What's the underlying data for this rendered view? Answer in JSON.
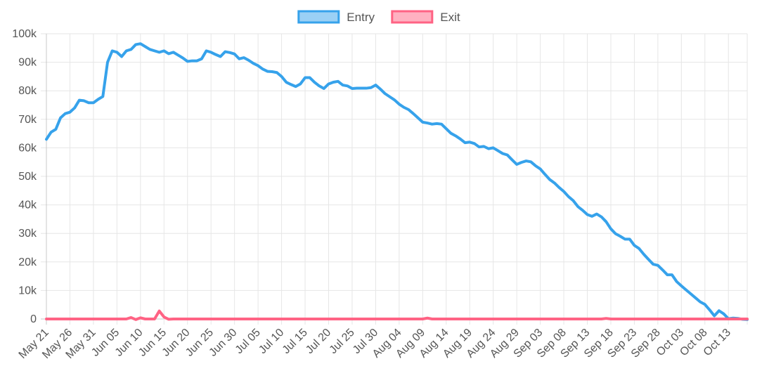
{
  "chart_data": {
    "type": "line",
    "legend": {
      "placement": "top-center"
    },
    "grid": true,
    "ylim": [
      0,
      100000
    ],
    "y_ticks": [
      0,
      10000,
      20000,
      30000,
      40000,
      50000,
      60000,
      70000,
      80000,
      90000,
      100000
    ],
    "y_tick_labels": [
      "0",
      "10k",
      "20k",
      "30k",
      "40k",
      "50k",
      "60k",
      "70k",
      "80k",
      "90k",
      "100k"
    ],
    "x_start": "May 21",
    "x_ticks": [
      "May 21",
      "May 26",
      "May 31",
      "Jun 05",
      "Jun 10",
      "Jun 15",
      "Jun 20",
      "Jun 25",
      "Jun 30",
      "Jul 05",
      "Jul 10",
      "Jul 15",
      "Jul 20",
      "Jul 25",
      "Jul 30",
      "Aug 04",
      "Aug 09",
      "Aug 14",
      "Aug 19",
      "Aug 24",
      "Aug 29",
      "Sep 03",
      "Sep 08",
      "Sep 13",
      "Sep 18",
      "Sep 23",
      "Sep 28",
      "Oct 03",
      "Oct 08",
      "Oct 13"
    ],
    "series": [
      {
        "name": "Entry",
        "color": "#36a2eb",
        "fill": "rgba(54,162,235,0.5)",
        "values": [
          63000,
          65500,
          66500,
          70500,
          72000,
          72500,
          74000,
          76700,
          76500,
          75800,
          75800,
          77000,
          78000,
          90000,
          94000,
          93500,
          92000,
          94000,
          94500,
          96200,
          96500,
          95500,
          94500,
          94000,
          93500,
          94000,
          93000,
          93500,
          92500,
          91500,
          90300,
          90500,
          90500,
          91200,
          94000,
          93500,
          92700,
          92000,
          93700,
          93400,
          92900,
          91200,
          91600,
          90700,
          89600,
          88800,
          87600,
          86800,
          86700,
          86400,
          85000,
          83000,
          82200,
          81500,
          82400,
          84600,
          84600,
          83000,
          81700,
          80800,
          82400,
          83000,
          83300,
          82000,
          81700,
          80800,
          80900,
          80900,
          80900,
          81100,
          82000,
          80600,
          79000,
          77900,
          76800,
          75300,
          74200,
          73400,
          72000,
          70500,
          69000,
          68700,
          68300,
          68500,
          68300,
          66700,
          65100,
          64200,
          63100,
          61800,
          62000,
          61500,
          60300,
          60500,
          59700,
          60000,
          59000,
          58000,
          57500,
          55800,
          54200,
          54900,
          55400,
          55100,
          53700,
          52600,
          50700,
          48900,
          47700,
          46100,
          44700,
          42900,
          41500,
          39400,
          38100,
          36600,
          36000,
          36800,
          35800,
          34100,
          31600,
          29900,
          29000,
          28000,
          28000,
          25800,
          24700,
          22700,
          20900,
          19200,
          18800,
          17200,
          15500,
          15500,
          13100,
          11600,
          10200,
          8800,
          7400,
          6000,
          5100,
          3200,
          1100,
          2900,
          1800,
          100,
          300,
          200,
          -100,
          -200
        ]
      },
      {
        "name": "Exit",
        "color": "#ff6384",
        "fill": "rgba(255,99,132,0.5)",
        "values": [
          0,
          0,
          0,
          0,
          0,
          0,
          0,
          0,
          0,
          0,
          0,
          0,
          0,
          0,
          0,
          0,
          0,
          0,
          500,
          -200,
          400,
          0,
          0,
          0,
          2800,
          700,
          -100,
          0,
          0,
          0,
          0,
          0,
          0,
          0,
          0,
          0,
          0,
          0,
          0,
          0,
          0,
          0,
          0,
          0,
          0,
          0,
          0,
          0,
          0,
          0,
          0,
          0,
          0,
          0,
          0,
          0,
          0,
          0,
          0,
          0,
          0,
          0,
          0,
          0,
          0,
          0,
          0,
          0,
          0,
          0,
          0,
          0,
          0,
          0,
          0,
          0,
          0,
          0,
          0,
          0,
          0,
          300,
          0,
          0,
          0,
          0,
          0,
          0,
          0,
          0,
          0,
          0,
          0,
          0,
          0,
          0,
          0,
          0,
          0,
          0,
          0,
          0,
          0,
          0,
          0,
          0,
          0,
          0,
          0,
          0,
          0,
          0,
          0,
          0,
          0,
          0,
          0,
          0,
          0,
          200,
          0,
          0,
          0,
          0,
          0,
          0,
          0,
          0,
          0,
          0,
          0,
          0,
          0,
          0,
          0,
          0,
          0,
          0,
          0,
          0,
          0,
          0,
          0,
          0,
          0,
          0,
          0,
          0,
          0,
          0
        ]
      }
    ]
  }
}
